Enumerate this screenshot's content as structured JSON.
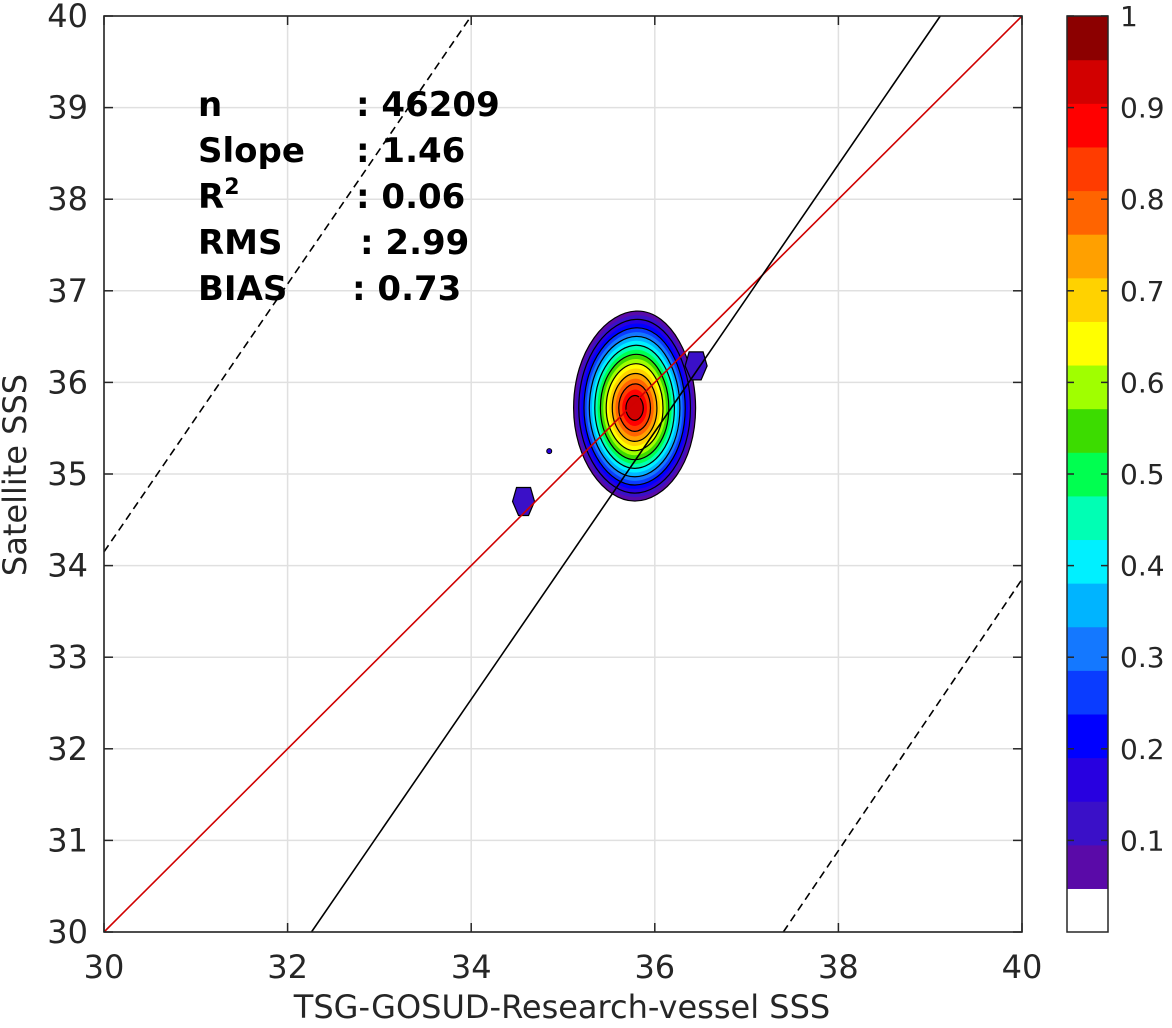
{
  "chart_data": {
    "type": "contour",
    "xlabel": "TSG-GOSUD-Research-vessel SSS",
    "ylabel": "Satellite SSS",
    "xlim": [
      30,
      40
    ],
    "ylim": [
      30,
      40
    ],
    "x_ticks": [
      "30",
      "32",
      "34",
      "36",
      "38",
      "40"
    ],
    "y_ticks": [
      "30",
      "31",
      "32",
      "33",
      "34",
      "35",
      "36",
      "37",
      "38",
      "39",
      "40"
    ],
    "grid": true,
    "stats": [
      {
        "label": "n",
        "value": ": 46209"
      },
      {
        "label": "Slope",
        "value": ": 1.46"
      },
      {
        "label": "R",
        "sup": "2",
        "value": ": 0.06"
      },
      {
        "label": "RMS",
        "value": ": 2.99"
      },
      {
        "label": "BIAS",
        "value": ": 0.73"
      }
    ],
    "lines": [
      {
        "kind": "one-to-one",
        "color": "#d00000",
        "x": [
          30,
          40
        ],
        "y": [
          30,
          40
        ]
      },
      {
        "kind": "regression",
        "color": "#000000",
        "x": [
          32.26,
          39.11
        ],
        "y": [
          30,
          40
        ]
      },
      {
        "kind": "dashed-upper",
        "color": "#000000",
        "x": [
          30,
          34
        ],
        "y": [
          34.15,
          40
        ]
      },
      {
        "kind": "dashed-lower",
        "color": "#000000",
        "x": [
          37.4,
          40
        ],
        "y": [
          30,
          33.85
        ]
      }
    ],
    "density_peak": {
      "x": 35.78,
      "y": 35.72
    },
    "secondary_blobs": [
      {
        "x": 34.57,
        "y": 34.7
      },
      {
        "x": 36.45,
        "y": 36.18
      },
      {
        "x": 34.85,
        "y": 35.25
      }
    ],
    "colorbar": {
      "range": [
        0,
        1
      ],
      "ticks": [
        "0.1",
        "0.2",
        "0.3",
        "0.4",
        "0.5",
        "0.6",
        "0.7",
        "0.8",
        "0.9",
        "1"
      ],
      "colors": [
        "#ffffff",
        "#5a0aa8",
        "#3a10c8",
        "#2800e0",
        "#0000ff",
        "#0a3cff",
        "#1478ff",
        "#00b4ff",
        "#00f0ff",
        "#00ffb4",
        "#00ff50",
        "#3cdc00",
        "#a0ff00",
        "#ffff00",
        "#ffd200",
        "#ffa000",
        "#ff6400",
        "#ff3c00",
        "#ff0000",
        "#d20000",
        "#8c0000"
      ]
    }
  }
}
